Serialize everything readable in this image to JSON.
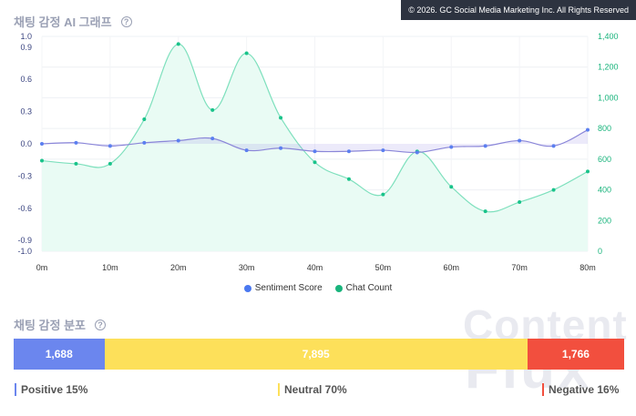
{
  "header": {
    "chart_title": "채팅 감정 AI 그래프",
    "help_glyph": "?",
    "copyright": "© 2026. GC Social Media Marketing Inc. All Rights Reserved"
  },
  "chart_data": {
    "type": "line",
    "x": [
      0,
      5,
      10,
      15,
      20,
      25,
      30,
      35,
      40,
      45,
      50,
      55,
      60,
      65,
      70,
      75,
      80
    ],
    "x_ticks": [
      "0m",
      "10m",
      "20m",
      "30m",
      "40m",
      "50m",
      "60m",
      "70m",
      "80m"
    ],
    "x_tick_values": [
      0,
      10,
      20,
      30,
      40,
      50,
      60,
      70,
      80
    ],
    "y_left": {
      "range": [
        -1.0,
        1.0
      ],
      "tick_values": [
        -1.0,
        -0.9,
        -0.6,
        -0.3,
        0.0,
        0.3,
        0.6,
        0.9,
        1.0
      ],
      "tick_labels": [
        "-1.0",
        "-0.9",
        "-0.6",
        "-0.3",
        "0.0",
        "0.3",
        "0.6",
        "0.9",
        "1.0"
      ]
    },
    "y_right": {
      "range": [
        0,
        1400
      ],
      "tick_values": [
        0,
        200,
        400,
        600,
        800,
        1000,
        1200,
        1400
      ],
      "tick_labels": [
        "0",
        "200",
        "400",
        "600",
        "800",
        "1,000",
        "1,200",
        "1,400"
      ]
    },
    "series": [
      {
        "name": "Sentiment Score",
        "axis": "left",
        "color": "#5b7ff0",
        "values": [
          0.0,
          0.01,
          -0.02,
          0.01,
          0.03,
          0.05,
          -0.06,
          -0.04,
          -0.07,
          -0.07,
          -0.06,
          -0.08,
          -0.03,
          -0.02,
          0.03,
          -0.02,
          0.13
        ]
      },
      {
        "name": "Chat Count",
        "axis": "right",
        "color": "#19c38a",
        "values": [
          590,
          570,
          570,
          860,
          1350,
          920,
          1290,
          870,
          580,
          470,
          370,
          650,
          420,
          260,
          320,
          400,
          520
        ]
      }
    ],
    "grid": true,
    "legend_position": "bottom"
  },
  "distribution": {
    "title": "채팅 감정 분포",
    "positive": {
      "count": "1,688",
      "fraction": 0.15,
      "label": "Positive 15%",
      "color": "#6b86ee"
    },
    "neutral": {
      "count": "7,895",
      "fraction": 0.7,
      "label": "Neutral 70%",
      "color": "#fde05a"
    },
    "negative": {
      "count": "1,766",
      "fraction": 0.16,
      "label": "Negative 16%",
      "color": "#f24f3e"
    }
  },
  "watermark": {
    "line1": "Content",
    "line2": "Flux"
  }
}
